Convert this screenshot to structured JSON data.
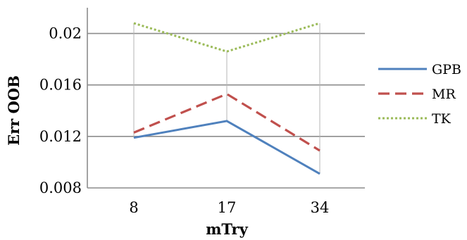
{
  "chart_data": {
    "type": "line",
    "title": "",
    "xlabel": "mTry",
    "ylabel": "Err OOB",
    "categories": [
      "8",
      "17",
      "34"
    ],
    "ylim": [
      0.008,
      0.022
    ],
    "yticks": [
      "0.008",
      "0.012",
      "0.016",
      "0.02"
    ],
    "grid": "horizontal",
    "legend_position": "right",
    "series": [
      {
        "name": "GPB",
        "values": [
          0.0119,
          0.0132,
          0.0091
        ],
        "color": "#4f81bd",
        "style": "solid"
      },
      {
        "name": "MR",
        "values": [
          0.0123,
          0.0153,
          0.0109
        ],
        "color": "#c0504d",
        "style": "dashed"
      },
      {
        "name": "TK",
        "values": [
          0.0208,
          0.0186,
          0.0208
        ],
        "color": "#9bbb59",
        "style": "dotted"
      }
    ]
  }
}
